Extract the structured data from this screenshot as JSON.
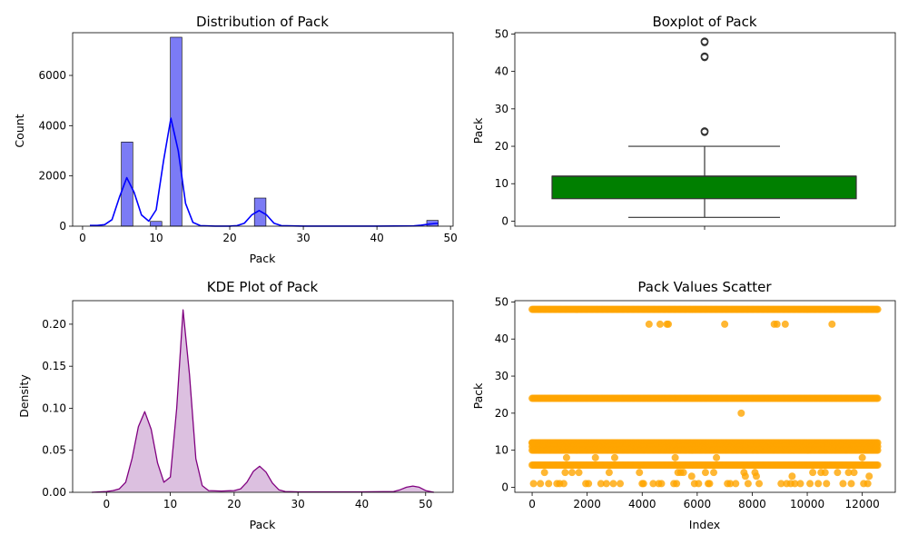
{
  "chart_data": [
    {
      "type": "histogram",
      "title": "Distribution of Pack",
      "xlabel": "Pack",
      "ylabel": "Count",
      "xlim": [
        -1.35,
        50.35
      ],
      "ylim": [
        0,
        7700
      ],
      "xticks": [
        0,
        10,
        20,
        30,
        40,
        50
      ],
      "yticks": [
        0,
        2000,
        4000,
        6000
      ],
      "bar_color": "#7b7bf5",
      "kde_color": "#0000ff",
      "bins": [
        {
          "x0": 5.27,
          "x1": 6.83,
          "count": 3350
        },
        {
          "x0": 9.2,
          "x1": 10.77,
          "count": 190
        },
        {
          "x0": 11.93,
          "x1": 13.5,
          "count": 7520
        },
        {
          "x0": 23.35,
          "x1": 24.92,
          "count": 1120
        },
        {
          "x0": 46.77,
          "x1": 48.33,
          "count": 230
        }
      ],
      "kde_curve": [
        [
          1,
          30
        ],
        [
          2,
          30
        ],
        [
          3,
          60
        ],
        [
          4,
          260
        ],
        [
          5,
          1150
        ],
        [
          6,
          1930
        ],
        [
          7,
          1350
        ],
        [
          8,
          450
        ],
        [
          9,
          200
        ],
        [
          10,
          650
        ],
        [
          11,
          2600
        ],
        [
          12,
          4300
        ],
        [
          13,
          3000
        ],
        [
          14,
          900
        ],
        [
          15,
          150
        ],
        [
          16,
          20
        ],
        [
          18,
          5
        ],
        [
          20,
          5
        ],
        [
          21,
          20
        ],
        [
          22,
          120
        ],
        [
          23,
          450
        ],
        [
          24,
          620
        ],
        [
          25,
          450
        ],
        [
          26,
          120
        ],
        [
          27,
          20
        ],
        [
          30,
          5
        ],
        [
          40,
          5
        ],
        [
          45,
          10
        ],
        [
          46,
          40
        ],
        [
          47,
          80
        ],
        [
          48,
          110
        ],
        [
          48.3,
          110
        ]
      ]
    },
    {
      "type": "box",
      "title": "Boxplot of Pack",
      "xlabel": "",
      "ylabel": "Pack",
      "ylim": [
        -1.35,
        50.35
      ],
      "yticks": [
        0,
        10,
        20,
        30,
        40,
        50
      ],
      "box_color": "#007f00",
      "whisker_low": 1,
      "q1": 6,
      "median": 12,
      "q3": 12,
      "whisker_high": 20,
      "outliers": [
        24,
        44,
        48
      ]
    },
    {
      "type": "area",
      "title": "KDE Plot of Pack",
      "xlabel": "Pack",
      "ylabel": "Density",
      "xlim": [
        -5.3,
        54.3
      ],
      "ylim": [
        0,
        0.228
      ],
      "xticks": [
        0,
        10,
        20,
        30,
        40,
        50
      ],
      "yticks": [
        0.0,
        0.05,
        0.1,
        0.15,
        0.2
      ],
      "ytick_labels": [
        "0.00",
        "0.05",
        "0.10",
        "0.15",
        "0.20"
      ],
      "line_color": "#800080",
      "fill_color": "#dcc0e0",
      "curve": [
        [
          -2.3,
          0
        ],
        [
          -1,
          0.0005
        ],
        [
          0,
          0.001
        ],
        [
          1,
          0.002
        ],
        [
          2,
          0.004
        ],
        [
          3,
          0.012
        ],
        [
          4,
          0.04
        ],
        [
          5,
          0.078
        ],
        [
          6,
          0.096
        ],
        [
          7,
          0.075
        ],
        [
          8,
          0.035
        ],
        [
          9,
          0.012
        ],
        [
          10,
          0.018
        ],
        [
          11,
          0.1
        ],
        [
          12,
          0.217
        ],
        [
          13,
          0.14
        ],
        [
          14,
          0.04
        ],
        [
          15,
          0.008
        ],
        [
          16,
          0.002
        ],
        [
          18,
          0.0015
        ],
        [
          20,
          0.002
        ],
        [
          21,
          0.004
        ],
        [
          22,
          0.012
        ],
        [
          23,
          0.025
        ],
        [
          24,
          0.031
        ],
        [
          25,
          0.024
        ],
        [
          26,
          0.011
        ],
        [
          27,
          0.003
        ],
        [
          28,
          0.001
        ],
        [
          30,
          0.0005
        ],
        [
          40,
          0.0005
        ],
        [
          45,
          0.001
        ],
        [
          46,
          0.003
        ],
        [
          47,
          0.006
        ],
        [
          48,
          0.0075
        ],
        [
          49,
          0.006
        ],
        [
          50,
          0.002
        ],
        [
          51.3,
          0
        ]
      ]
    },
    {
      "type": "scatter",
      "title": "Pack Values Scatter",
      "xlabel": "Index",
      "ylabel": "Pack",
      "xlim": [
        -629,
        13200
      ],
      "ylim": [
        -1.35,
        50.35
      ],
      "xticks": [
        0,
        2000,
        4000,
        6000,
        8000,
        10000,
        12000
      ],
      "yticks": [
        0,
        10,
        20,
        30,
        40,
        50
      ],
      "point_color": "#ffa500",
      "n_points": 12580,
      "dense_levels": [
        48,
        24,
        12,
        11,
        10,
        6
      ],
      "sparse_points": [
        [
          0,
          12
        ],
        [
          50,
          1
        ],
        [
          300,
          1
        ],
        [
          450,
          4
        ],
        [
          600,
          1
        ],
        [
          900,
          1
        ],
        [
          1000,
          1
        ],
        [
          1150,
          1
        ],
        [
          1200,
          4
        ],
        [
          1250,
          8
        ],
        [
          1450,
          4
        ],
        [
          1700,
          4
        ],
        [
          1950,
          1
        ],
        [
          2050,
          1
        ],
        [
          2300,
          8
        ],
        [
          2500,
          1
        ],
        [
          2700,
          1
        ],
        [
          2800,
          4
        ],
        [
          2950,
          1
        ],
        [
          3000,
          8
        ],
        [
          3200,
          1
        ],
        [
          3900,
          4
        ],
        [
          4000,
          1
        ],
        [
          4050,
          1
        ],
        [
          4250,
          44
        ],
        [
          4400,
          1
        ],
        [
          4600,
          1
        ],
        [
          4650,
          44
        ],
        [
          4700,
          1
        ],
        [
          4900,
          44
        ],
        [
          4950,
          44
        ],
        [
          5150,
          1
        ],
        [
          5200,
          8
        ],
        [
          5250,
          1
        ],
        [
          5300,
          4
        ],
        [
          5400,
          4
        ],
        [
          5500,
          4
        ],
        [
          5800,
          3
        ],
        [
          5900,
          1
        ],
        [
          6050,
          1
        ],
        [
          6300,
          4
        ],
        [
          6400,
          1
        ],
        [
          6450,
          1
        ],
        [
          6600,
          4
        ],
        [
          6700,
          8
        ],
        [
          7000,
          44
        ],
        [
          7100,
          1
        ],
        [
          7200,
          1
        ],
        [
          7400,
          1
        ],
        [
          7600,
          20
        ],
        [
          7700,
          4
        ],
        [
          7750,
          3
        ],
        [
          7850,
          1
        ],
        [
          8100,
          4
        ],
        [
          8150,
          3
        ],
        [
          8250,
          1
        ],
        [
          8800,
          44
        ],
        [
          8900,
          44
        ],
        [
          9050,
          1
        ],
        [
          9200,
          44
        ],
        [
          9250,
          1
        ],
        [
          9400,
          1
        ],
        [
          9450,
          3
        ],
        [
          9550,
          1
        ],
        [
          9750,
          1
        ],
        [
          10100,
          1
        ],
        [
          10200,
          4
        ],
        [
          10400,
          1
        ],
        [
          10500,
          4
        ],
        [
          10650,
          4
        ],
        [
          10700,
          1
        ],
        [
          10900,
          44
        ],
        [
          11100,
          4
        ],
        [
          11300,
          1
        ],
        [
          11500,
          4
        ],
        [
          11600,
          1
        ],
        [
          11700,
          4
        ],
        [
          12000,
          8
        ],
        [
          12050,
          1
        ],
        [
          12200,
          1
        ],
        [
          12250,
          3
        ]
      ]
    }
  ]
}
